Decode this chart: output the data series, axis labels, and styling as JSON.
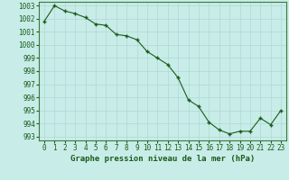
{
  "x": [
    0,
    1,
    2,
    3,
    4,
    5,
    6,
    7,
    8,
    9,
    10,
    11,
    12,
    13,
    14,
    15,
    16,
    17,
    18,
    19,
    20,
    21,
    22,
    23
  ],
  "y": [
    1001.8,
    1003.0,
    1002.6,
    1002.4,
    1002.1,
    1001.6,
    1001.5,
    1000.8,
    1000.7,
    1000.4,
    999.5,
    999.0,
    998.5,
    997.5,
    995.8,
    995.3,
    994.1,
    993.5,
    993.2,
    993.4,
    993.4,
    994.4,
    993.9,
    995.0
  ],
  "line_color": "#1a5c1a",
  "marker_color": "#1a5c1a",
  "bg_color": "#c8ece8",
  "grid_color": "#b0d8d4",
  "xlabel": "Graphe pression niveau de la mer (hPa)",
  "xlim": [
    -0.5,
    23.5
  ],
  "ylim": [
    992.7,
    1003.3
  ],
  "yticks": [
    993,
    994,
    995,
    996,
    997,
    998,
    999,
    1000,
    1001,
    1002,
    1003
  ],
  "xticks": [
    0,
    1,
    2,
    3,
    4,
    5,
    6,
    7,
    8,
    9,
    10,
    11,
    12,
    13,
    14,
    15,
    16,
    17,
    18,
    19,
    20,
    21,
    22,
    23
  ],
  "xlabel_fontsize": 6.5,
  "tick_fontsize": 5.5,
  "marker_size": 2.5,
  "line_width": 0.8
}
